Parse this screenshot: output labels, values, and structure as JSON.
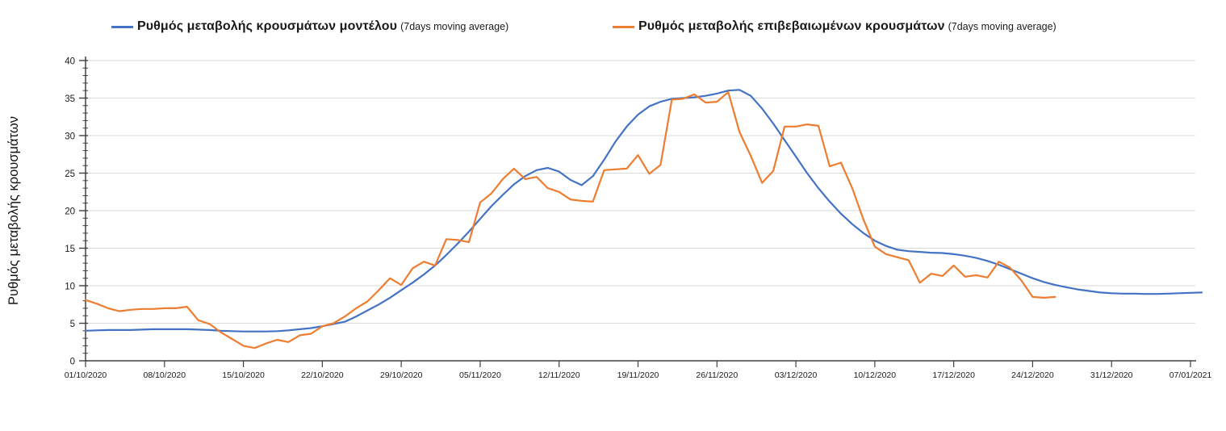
{
  "accent_colors": {
    "model_line": "#4472C4",
    "confirmed_line": "#ED7D31",
    "gridline": "#DADADA",
    "axis": "#404040",
    "text": "#1a1a1a"
  },
  "legend": {
    "items": [
      {
        "label": "Ρυθμός μεταβολής κρουσμάτων μοντέλου",
        "note": "(7days moving average)",
        "color": "#4472C4"
      },
      {
        "label": "Ρυθμός μεταβολής επιβεβαιωμένων κρουσμάτων",
        "note": "(7days moving average)",
        "color": "#ED7D31"
      }
    ]
  },
  "chart_data": {
    "type": "line",
    "title": "",
    "xlabel": "",
    "ylabel": "Ρυθμός μεταβολής κρουσμάτων",
    "ylim": [
      0,
      40
    ],
    "y_tick_step": 5,
    "y_minor_tick_step": 1,
    "y_tick_labels": [
      "0",
      "5",
      "10",
      "15",
      "20",
      "25",
      "30",
      "35",
      "40"
    ],
    "grid": "horizontal",
    "legend_position": "top",
    "x_days_per_tick": 7,
    "x_tick_labels": [
      "01/10/2020",
      "08/10/2020",
      "15/10/2020",
      "22/10/2020",
      "29/10/2020",
      "05/11/2020",
      "12/11/2020",
      "19/11/2020",
      "26/11/2020",
      "03/12/2020",
      "10/12/2020",
      "17/12/2020",
      "24/12/2020",
      "31/12/2020",
      "07/01/2021"
    ],
    "series": [
      {
        "name": "Ρυθμός μεταβολής κρουσμάτων μοντέλου (7days moving average)",
        "color": "#4472C4",
        "start_date": "01/10/2020",
        "end_date": "07/01/2021",
        "values": [
          4.0,
          4.05,
          4.1,
          4.1,
          4.1,
          4.15,
          4.2,
          4.2,
          4.2,
          4.2,
          4.15,
          4.1,
          4.0,
          3.95,
          3.9,
          3.9,
          3.9,
          3.95,
          4.05,
          4.2,
          4.35,
          4.6,
          4.9,
          5.2,
          5.9,
          6.7,
          7.5,
          8.4,
          9.4,
          10.4,
          11.5,
          12.7,
          14.1,
          15.6,
          17.2,
          18.9,
          20.6,
          22.1,
          23.5,
          24.6,
          25.4,
          25.7,
          25.2,
          24.1,
          23.4,
          24.6,
          26.8,
          29.2,
          31.2,
          32.8,
          33.9,
          34.5,
          34.9,
          35.0,
          35.1,
          35.3,
          35.6,
          36.0,
          36.1,
          35.3,
          33.6,
          31.6,
          29.4,
          27.2,
          25.0,
          23.0,
          21.2,
          19.6,
          18.2,
          17.0,
          16.0,
          15.3,
          14.8,
          14.6,
          14.5,
          14.4,
          14.35,
          14.2,
          14.0,
          13.7,
          13.3,
          12.8,
          12.2,
          11.6,
          11.0,
          10.5,
          10.1,
          9.8,
          9.5,
          9.3,
          9.1,
          9.0,
          8.95,
          8.95,
          8.9,
          8.9,
          8.95,
          9.0,
          9.05,
          9.1
        ]
      },
      {
        "name": "Ρυθμός μεταβολής επιβεβαιωμένων κρουσμάτων (7days moving average)",
        "color": "#ED7D31",
        "start_date": "01/10/2020",
        "end_date": "26/12/2020",
        "values": [
          8.1,
          7.6,
          7.0,
          6.6,
          6.8,
          6.9,
          6.9,
          7.0,
          7.0,
          7.2,
          5.4,
          4.9,
          3.8,
          2.9,
          2.0,
          1.7,
          2.3,
          2.8,
          2.5,
          3.4,
          3.6,
          4.6,
          5.0,
          5.9,
          7.0,
          7.9,
          9.4,
          11.0,
          10.1,
          12.3,
          13.2,
          12.7,
          16.2,
          16.1,
          15.8,
          21.1,
          22.3,
          24.2,
          25.6,
          24.2,
          24.5,
          23.0,
          22.5,
          21.5,
          21.3,
          21.2,
          25.4,
          25.5,
          25.6,
          27.4,
          24.9,
          26.1,
          34.8,
          34.9,
          35.5,
          34.4,
          34.5,
          35.8,
          30.5,
          27.3,
          23.7,
          25.3,
          31.2,
          31.2,
          31.5,
          31.3,
          25.9,
          26.4,
          23.0,
          18.8,
          15.2,
          14.2,
          13.8,
          13.4,
          10.4,
          11.6,
          11.3,
          12.7,
          11.2,
          11.4,
          11.1,
          13.2,
          12.4,
          10.7,
          8.5,
          8.4,
          8.5
        ]
      }
    ]
  }
}
